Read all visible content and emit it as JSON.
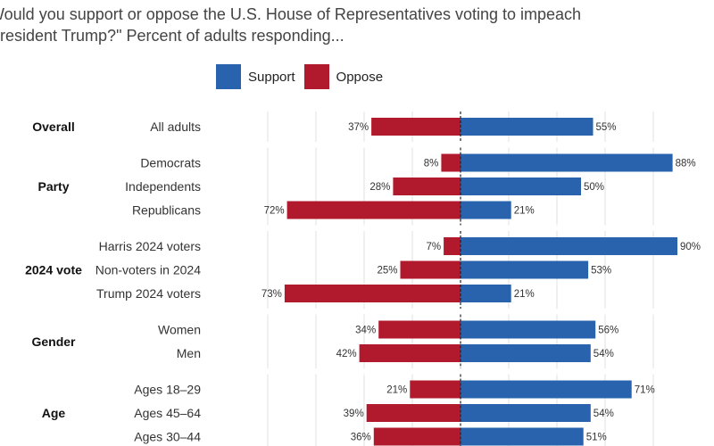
{
  "title": {
    "line1": "Would you support or oppose the U.S. House of Representatives voting to impeach",
    "line2": "President Trump?\" Percent of adults responding..."
  },
  "colors": {
    "support": "#2a63ad",
    "oppose": "#b11a2c",
    "axis": "#222222",
    "grid": "#e2e2e2"
  },
  "chart_data": {
    "type": "bar",
    "orientation": "horizontal-diverging",
    "title": "Would you support or oppose the U.S. House of Representatives voting to impeach President Trump?\" Percent of adults responding...",
    "legend": [
      "Support",
      "Oppose"
    ],
    "value_suffix": "%",
    "xlim": [
      -90,
      90
    ],
    "groups": [
      {
        "label": "Overall",
        "rows": [
          {
            "label": "All adults",
            "oppose": 37,
            "support": 55
          }
        ]
      },
      {
        "label": "Party",
        "rows": [
          {
            "label": "Democrats",
            "oppose": 8,
            "support": 88
          },
          {
            "label": "Independents",
            "oppose": 28,
            "support": 50
          },
          {
            "label": "Republicans",
            "oppose": 72,
            "support": 21
          }
        ]
      },
      {
        "label": "2024 vote",
        "rows": [
          {
            "label": "Harris 2024 voters",
            "oppose": 7,
            "support": 90
          },
          {
            "label": "Non-voters in 2024",
            "oppose": 25,
            "support": 53
          },
          {
            "label": "Trump 2024 voters",
            "oppose": 73,
            "support": 21
          }
        ]
      },
      {
        "label": "Gender",
        "rows": [
          {
            "label": "Women",
            "oppose": 34,
            "support": 56
          },
          {
            "label": "Men",
            "oppose": 42,
            "support": 54
          }
        ]
      },
      {
        "label": "Age",
        "rows": [
          {
            "label": "Ages 18–29",
            "oppose": 21,
            "support": 71
          },
          {
            "label": "Ages 45–64",
            "oppose": 39,
            "support": 54
          },
          {
            "label": "Ages 30–44",
            "oppose": 36,
            "support": 51
          }
        ]
      }
    ]
  }
}
